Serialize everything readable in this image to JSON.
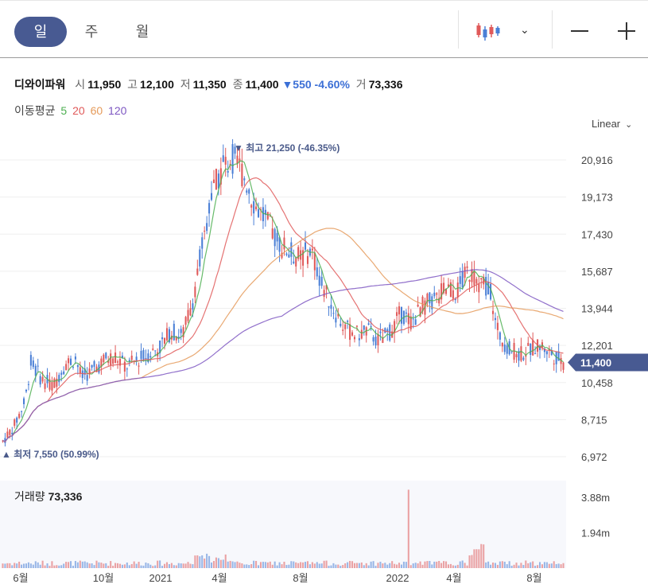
{
  "tabs": {
    "day": "일",
    "week": "주",
    "month": "월"
  },
  "toolbar": {
    "chart_type_icon": "candlestick-icon",
    "dropdown_icon": "chevron-down-icon",
    "zoom_out_icon": "minus-icon",
    "zoom_in_icon": "plus-icon"
  },
  "header": {
    "name": "디와이파워",
    "open_label": "시",
    "open": "11,950",
    "high_label": "고",
    "high": "12,100",
    "low_label": "저",
    "low": "11,350",
    "close_label": "종",
    "close": "11,400",
    "change": "▼550 -4.60%",
    "volume_label": "거",
    "volume": "73,336"
  },
  "moving_average": {
    "label": "이동평균",
    "periods": [
      {
        "text": "5",
        "color": "#4caf50"
      },
      {
        "text": "20",
        "color": "#e05a5a"
      },
      {
        "text": "60",
        "color": "#e59a5a"
      },
      {
        "text": "120",
        "color": "#7e57c2"
      }
    ]
  },
  "scale_mode": "Linear",
  "colors": {
    "up": "#e05a5a",
    "down": "#4a7fd6",
    "accent": "#485a92",
    "price_tag": "#485a92"
  },
  "chart_data": {
    "type": "candlestick",
    "ylim": [
      6500,
      21500
    ],
    "yticks": [
      "20,916",
      "19,173",
      "17,430",
      "15,687",
      "13,944",
      "12,201",
      "10,458",
      "8,715",
      "6,972"
    ],
    "ytick_values": [
      20916,
      19173,
      17430,
      15687,
      13944,
      12201,
      10458,
      8715,
      6972
    ],
    "xticks": [
      "6월",
      "10월",
      "2021",
      "4월",
      "8월",
      "2022",
      "4월",
      "8월"
    ],
    "last_price": 11400,
    "last_price_label": "11,400",
    "high_annotation": "▼ 최고 21,250 (-46.35%)",
    "low_annotation": "▲ 최저 7,550 (50.99%)",
    "price_path": [
      [
        0,
        7700
      ],
      [
        0.02,
        8400
      ],
      [
        0.04,
        9600
      ],
      [
        0.05,
        11400
      ],
      [
        0.07,
        10600
      ],
      [
        0.09,
        10300
      ],
      [
        0.11,
        11300
      ],
      [
        0.13,
        11600
      ],
      [
        0.14,
        10700
      ],
      [
        0.16,
        11000
      ],
      [
        0.18,
        11500
      ],
      [
        0.2,
        11700
      ],
      [
        0.22,
        11200
      ],
      [
        0.24,
        11500
      ],
      [
        0.26,
        11800
      ],
      [
        0.28,
        12100
      ],
      [
        0.3,
        12900
      ],
      [
        0.32,
        12600
      ],
      [
        0.34,
        14500
      ],
      [
        0.36,
        17500
      ],
      [
        0.37,
        19000
      ],
      [
        0.39,
        20500
      ],
      [
        0.41,
        21000
      ],
      [
        0.43,
        20200
      ],
      [
        0.45,
        18800
      ],
      [
        0.47,
        18000
      ],
      [
        0.49,
        17100
      ],
      [
        0.51,
        16600
      ],
      [
        0.53,
        16300
      ],
      [
        0.55,
        16700
      ],
      [
        0.57,
        15000
      ],
      [
        0.59,
        13900
      ],
      [
        0.61,
        13000
      ],
      [
        0.63,
        12700
      ],
      [
        0.65,
        12900
      ],
      [
        0.67,
        12400
      ],
      [
        0.69,
        12800
      ],
      [
        0.71,
        13700
      ],
      [
        0.73,
        13300
      ],
      [
        0.75,
        14100
      ],
      [
        0.77,
        14300
      ],
      [
        0.79,
        14900
      ],
      [
        0.81,
        14700
      ],
      [
        0.83,
        15700
      ],
      [
        0.85,
        15100
      ],
      [
        0.87,
        14900
      ],
      [
        0.88,
        13000
      ],
      [
        0.9,
        12100
      ],
      [
        0.92,
        11800
      ],
      [
        0.94,
        12000
      ],
      [
        0.96,
        12200
      ],
      [
        0.98,
        11800
      ],
      [
        1,
        11400
      ]
    ],
    "volume": {
      "title": "거래량",
      "value": "73,336",
      "yticks": [
        "3.88m",
        "1.94m"
      ],
      "ytick_values": [
        3880000,
        1940000
      ],
      "ylim": [
        0,
        4800000
      ],
      "spike_at": 0.725,
      "spike_value": 4300000
    }
  }
}
